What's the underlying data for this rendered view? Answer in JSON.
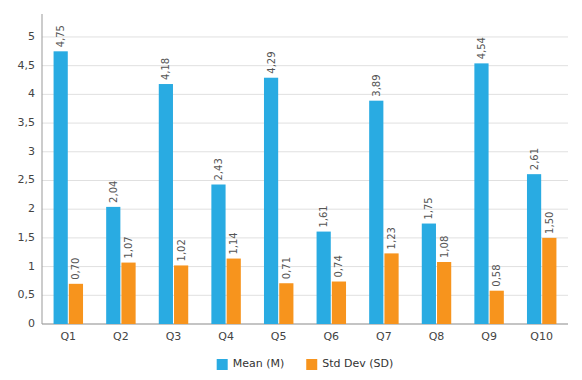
{
  "chart_data": {
    "type": "bar",
    "categories": [
      "Q1",
      "Q2",
      "Q3",
      "Q4",
      "Q5",
      "Q6",
      "Q7",
      "Q8",
      "Q9",
      "Q10"
    ],
    "series": [
      {
        "name": "Mean (M)",
        "color": "#29ABE2",
        "values": [
          4.75,
          2.04,
          4.18,
          2.43,
          4.29,
          1.61,
          3.89,
          1.75,
          4.54,
          2.61
        ],
        "value_labels": [
          "4,75",
          "2,04",
          "4,18",
          "2,43",
          "4,29",
          "1,61",
          "3,89",
          "1,75",
          "4,54",
          "2,61"
        ]
      },
      {
        "name": "Std Dev (SD)",
        "color": "#F7941D",
        "values": [
          0.7,
          1.07,
          1.02,
          1.14,
          0.71,
          0.74,
          1.23,
          1.08,
          0.58,
          1.5
        ],
        "value_labels": [
          "0,70",
          "1,07",
          "1,02",
          "1,14",
          "0,71",
          "0,74",
          "1,23",
          "1,08",
          "0,58",
          "1,50"
        ]
      }
    ],
    "ylim": [
      0,
      5.4
    ],
    "yticks": [
      0,
      {
        "value": 0.5,
        "label": "0,5"
      },
      1,
      {
        "value": 1.5,
        "label": "1,5"
      },
      2,
      {
        "value": 2.5,
        "label": "2,5"
      },
      3,
      {
        "value": 3.5,
        "label": "3,5"
      },
      4,
      {
        "value": 4.5,
        "label": "4,5"
      },
      5
    ],
    "grid": true,
    "data_labels": true,
    "legend": "bottom"
  }
}
